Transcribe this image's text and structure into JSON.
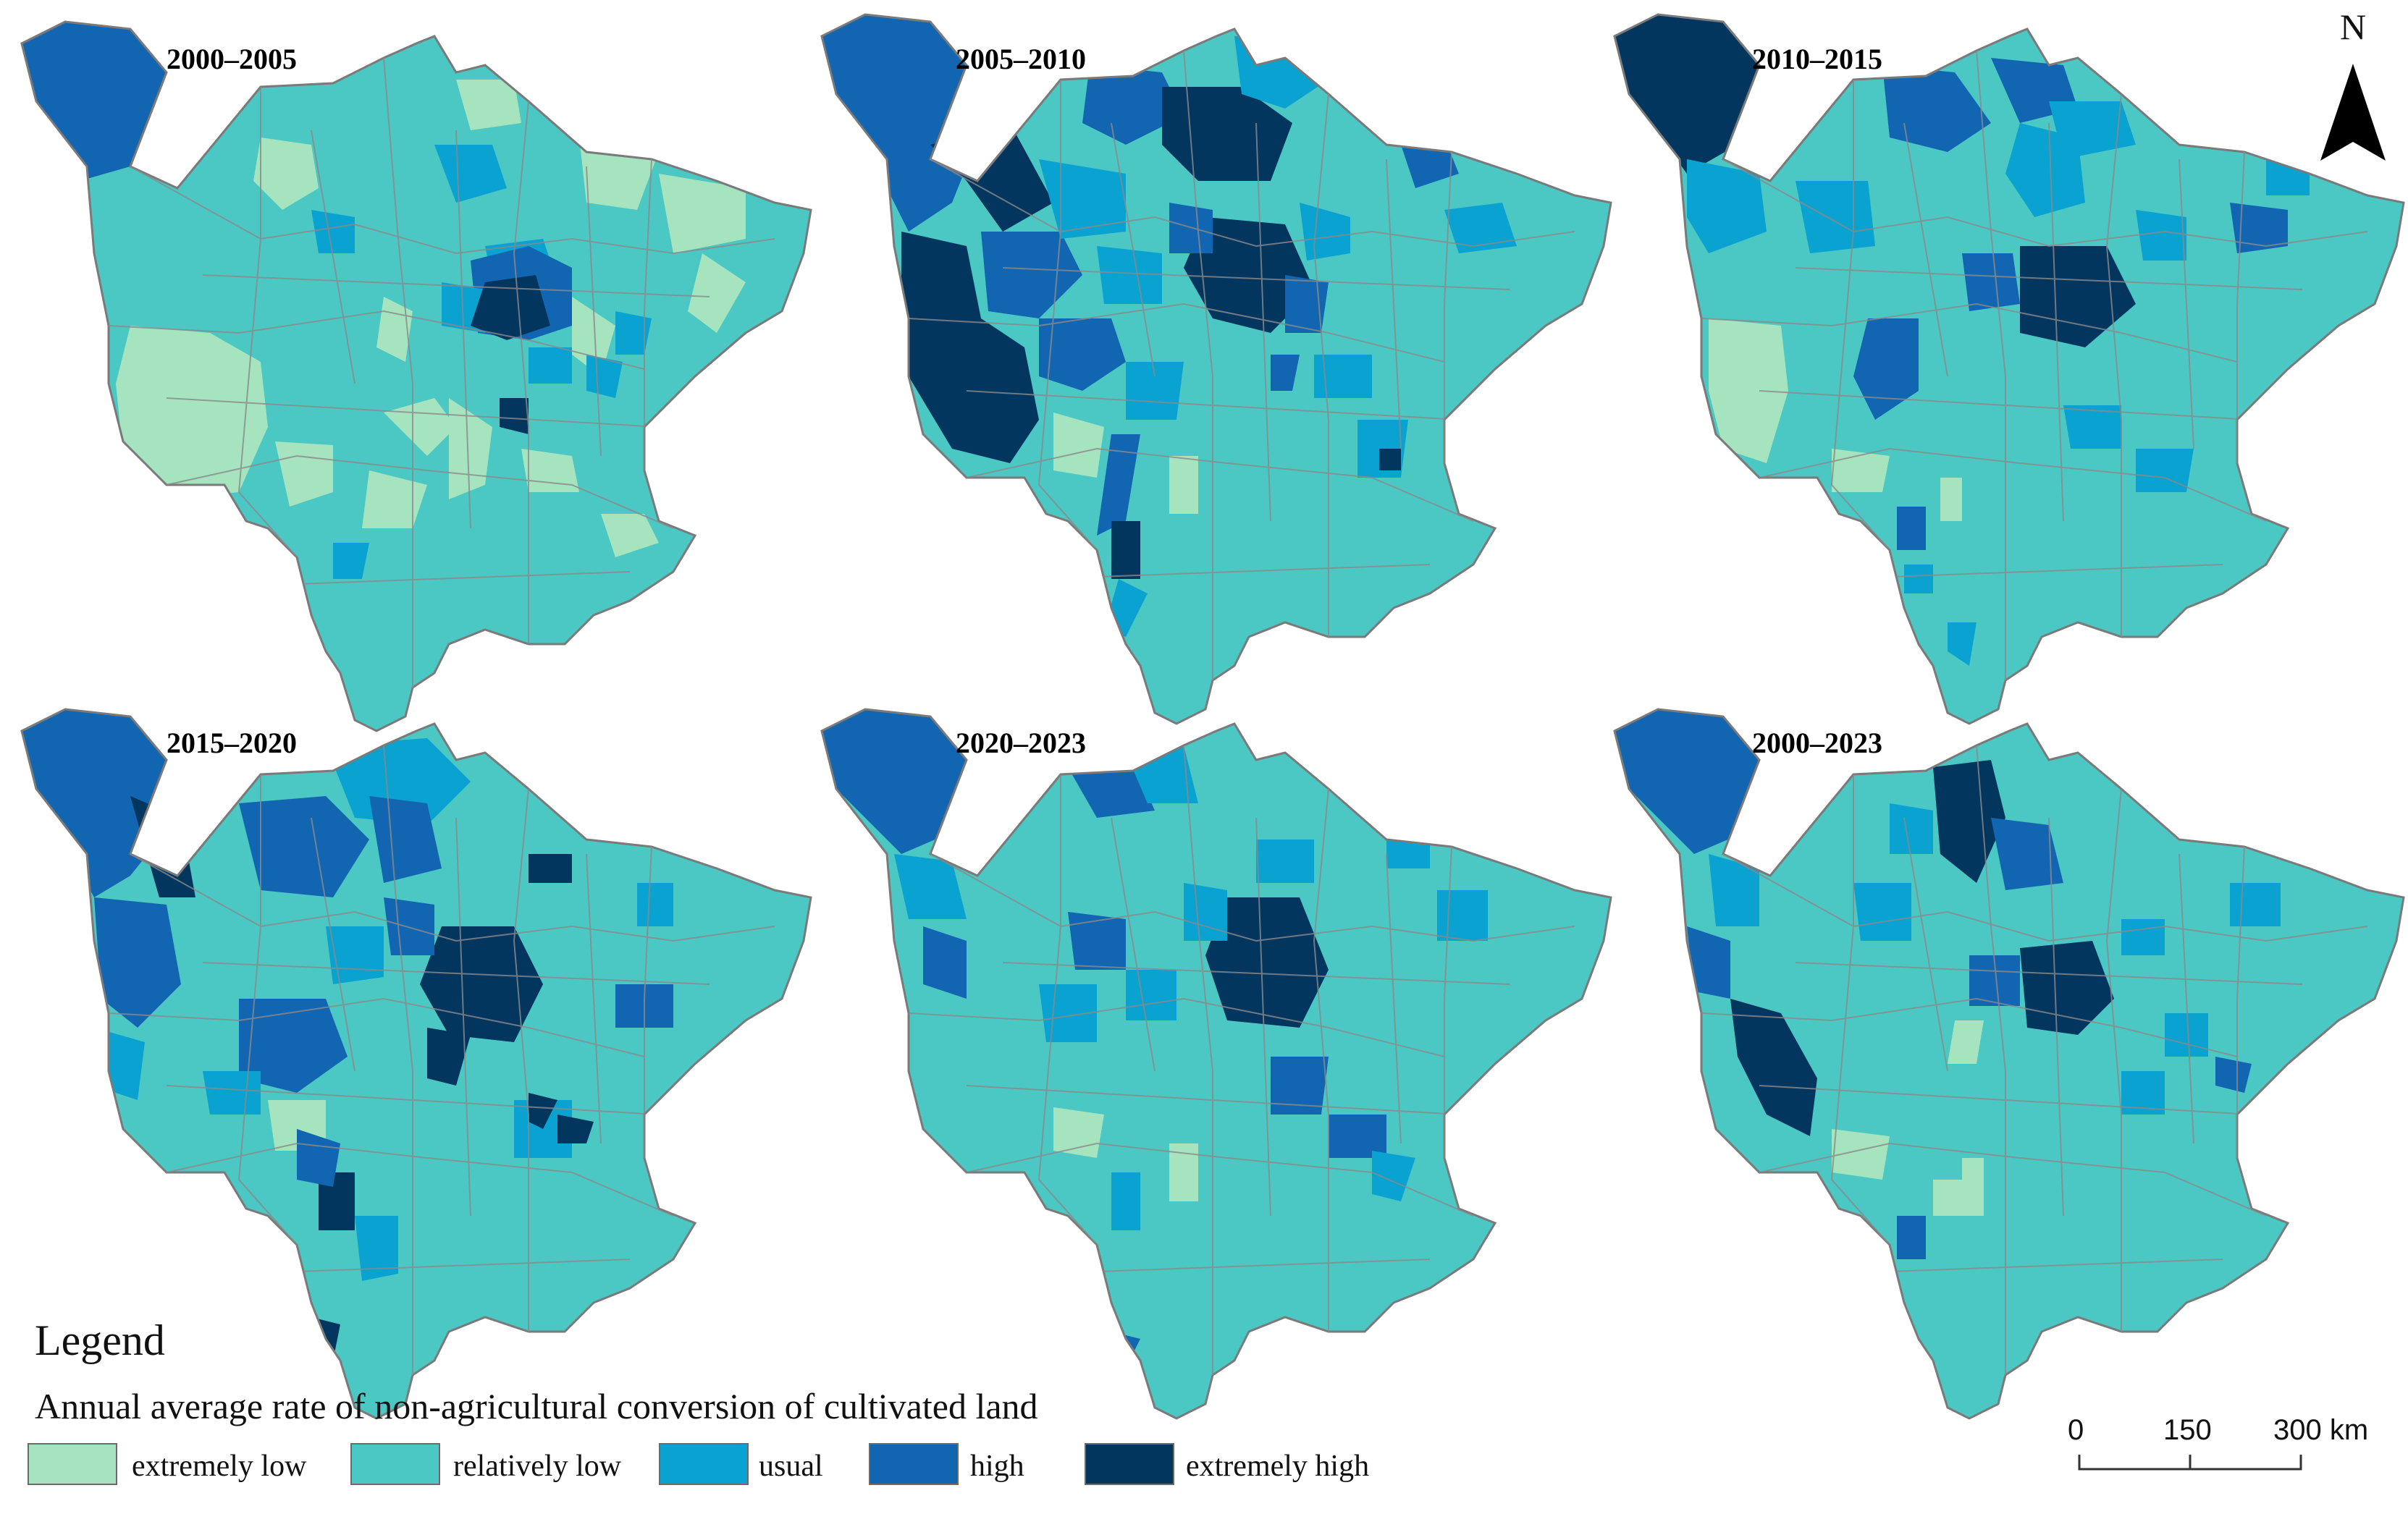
{
  "panels": [
    {
      "title": "2000–2005"
    },
    {
      "title": "2005–2010"
    },
    {
      "title": "2010–2015"
    },
    {
      "title": "2015–2020"
    },
    {
      "title": "2020–2023"
    },
    {
      "title": "2000–2023"
    }
  ],
  "legend": {
    "title": "Legend",
    "subtitle": "Annual average rate of non-agricultural conversion of cultivated land",
    "classes": [
      {
        "label": "extremely low",
        "color": "#a5e4bf"
      },
      {
        "label": "relatively low",
        "color": "#4bc7c4"
      },
      {
        "label": "usual",
        "color": "#0aa2d0"
      },
      {
        "label": "high",
        "color": "#1265b1"
      },
      {
        "label": "extremely high",
        "color": "#02365f"
      }
    ]
  },
  "north_arrow": {
    "label": "N"
  },
  "scale_bar": {
    "labels": [
      "0",
      "150",
      "300 km"
    ]
  },
  "colors": {
    "boundary": "#7a7a7a"
  }
}
